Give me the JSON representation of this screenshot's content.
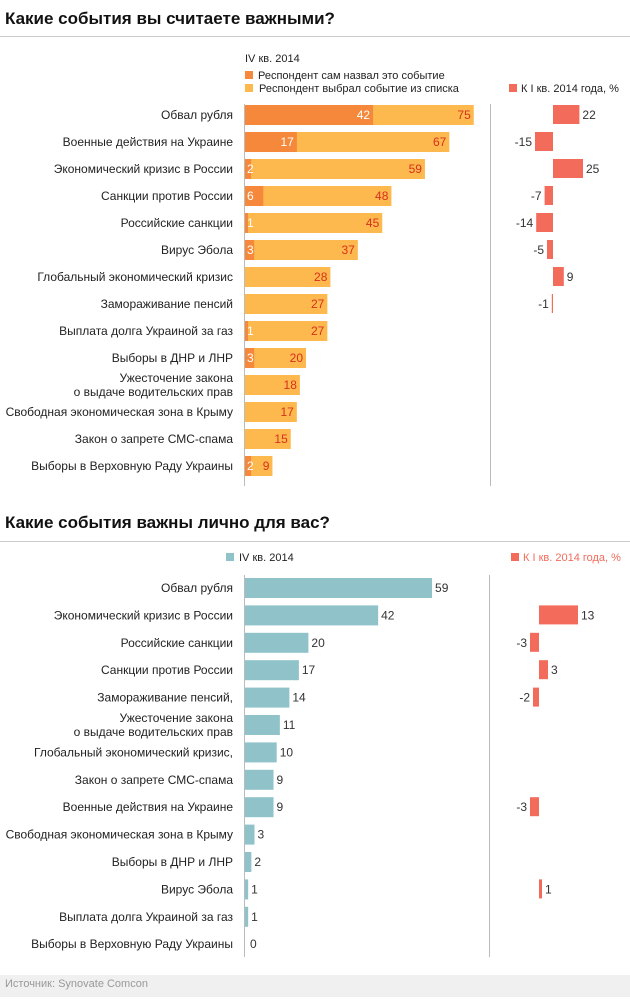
{
  "colors": {
    "own": "#f5883a",
    "chosen": "#fdb94d",
    "change": "#f26b5b",
    "teal": "#8fc3c9",
    "axis": "#bbbbbb",
    "val_red": "#d7301f",
    "val_dark": "#333333",
    "val_white": "#ffffff"
  },
  "chart_data": [
    {
      "type": "bar",
      "title": "Какие события вы считаете важными?",
      "period": "IV кв. 2014",
      "legend": {
        "own": "Респондент сам назвал это событие",
        "chosen": "Респондент выбрал событие из списка",
        "change": "К I кв. 2014 года, %"
      },
      "categories": [
        [
          "Обвал рубля"
        ],
        [
          "Военные действия на Украине"
        ],
        [
          "Экономический кризис в России"
        ],
        [
          "Санкции против России"
        ],
        [
          "Российские санкции"
        ],
        [
          "Вирус Эбола"
        ],
        [
          "Глобальный экономический кризис"
        ],
        [
          "Замораживание пенсий"
        ],
        [
          "Выплата долга Украиной за газ"
        ],
        [
          "Выборы в ДНР и ЛНР"
        ],
        [
          "Ужесточение закона",
          "о выдаче водительских прав"
        ],
        [
          "Свободная экономическая зона в Крыму"
        ],
        [
          "Закон о запрете СМС-спама"
        ],
        [
          "Выборы в Верховную Раду Украины"
        ]
      ],
      "series": [
        {
          "name": "Респондент сам назвал это событие",
          "values": [
            42,
            17,
            2,
            6,
            1,
            3,
            null,
            null,
            1,
            3,
            null,
            null,
            null,
            2
          ]
        },
        {
          "name": "Респондент выбрал событие из списка",
          "values": [
            75,
            67,
            59,
            48,
            45,
            37,
            28,
            27,
            27,
            20,
            18,
            17,
            15,
            9
          ]
        },
        {
          "name": "К I кв. 2014 года, %",
          "values": [
            22,
            -15,
            25,
            -7,
            -14,
            -5,
            9,
            -1,
            null,
            null,
            null,
            null,
            null,
            null
          ]
        }
      ]
    },
    {
      "type": "bar",
      "title": "Какие события важны лично для вас?",
      "legend": {
        "main": "IV кв. 2014",
        "change": "К I кв. 2014 года, %"
      },
      "categories": [
        [
          "Обвал рубля"
        ],
        [
          "Экономический кризис в России"
        ],
        [
          "Российские санкции"
        ],
        [
          "Санкции против России"
        ],
        [
          "Замораживание пенсий,"
        ],
        [
          "Ужесточение закона",
          "о выдаче водительских прав"
        ],
        [
          "Глобальный экономический кризис,"
        ],
        [
          "Закон о запрете СМС-спама"
        ],
        [
          "Военные действия на Украине"
        ],
        [
          "Свободная экономическая зона в Крыму"
        ],
        [
          "Выборы в ДНР и ЛНР"
        ],
        [
          "Вирус Эбола"
        ],
        [
          "Выплата долга Украиной за газ"
        ],
        [
          "Выборы в Верховную Раду Украины"
        ]
      ],
      "series": [
        {
          "name": "IV кв. 2014",
          "values": [
            59,
            42,
            20,
            17,
            14,
            11,
            10,
            9,
            9,
            3,
            2,
            1,
            1,
            0
          ]
        },
        {
          "name": "К I кв. 2014 года, %",
          "values": [
            null,
            13,
            -3,
            3,
            -2,
            null,
            null,
            null,
            -3,
            null,
            null,
            1,
            null,
            null
          ]
        }
      ]
    }
  ],
  "footer": {
    "source": "Источник: Synovate Comcon"
  }
}
